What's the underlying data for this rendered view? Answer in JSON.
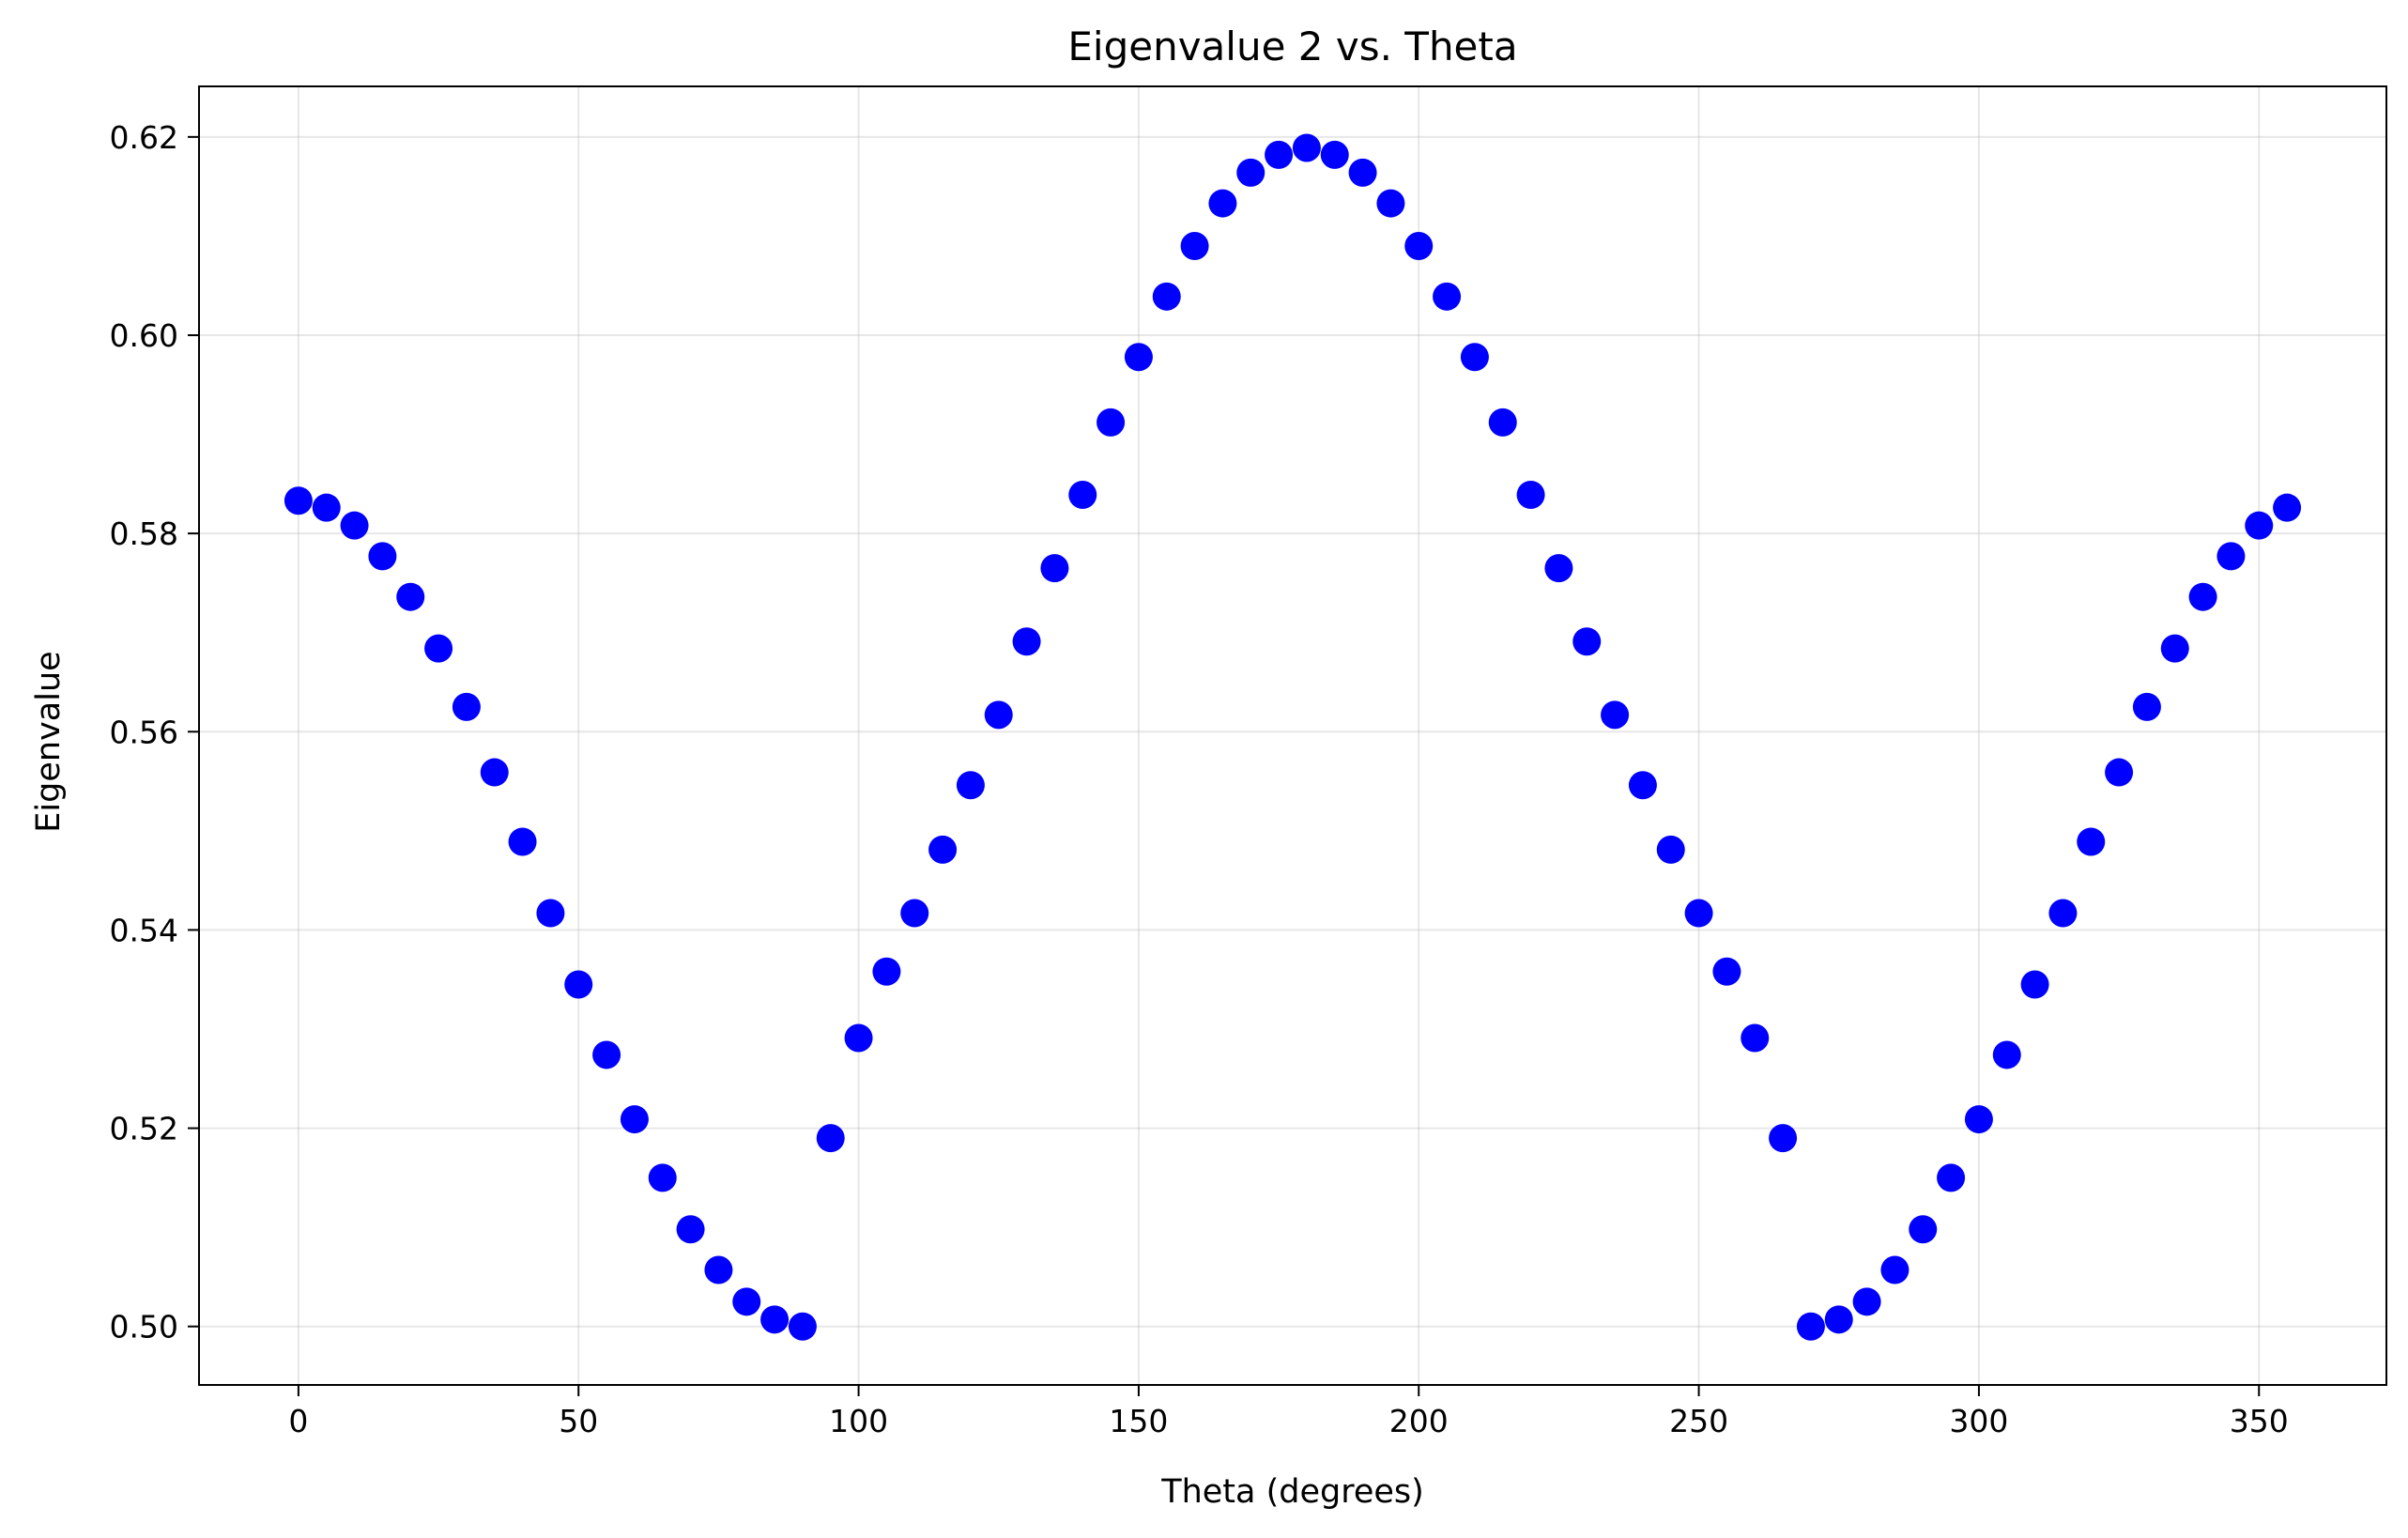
{
  "chart_data": {
    "type": "scatter",
    "title": "Eigenvalue 2 vs. Theta",
    "xlabel": "Theta (degrees)",
    "ylabel": "Eigenvalue",
    "xlim": [
      -17.75,
      372.75
    ],
    "ylim": [
      0.4941,
      0.6251
    ],
    "xticks": [
      0,
      50,
      100,
      150,
      200,
      250,
      300,
      350
    ],
    "xtick_labels": [
      "0",
      "50",
      "100",
      "150",
      "200",
      "250",
      "300",
      "350"
    ],
    "yticks": [
      0.5,
      0.52,
      0.54,
      0.56,
      0.58,
      0.6,
      0.62
    ],
    "ytick_labels": [
      "0.50",
      "0.52",
      "0.54",
      "0.56",
      "0.58",
      "0.60",
      "0.62"
    ],
    "grid": true,
    "marker_color": "#0000ff",
    "series": [
      {
        "x": [
          0,
          5,
          10,
          15,
          20,
          25,
          30,
          35,
          40,
          45,
          50,
          55,
          60,
          65,
          70,
          75,
          80,
          85,
          90,
          95,
          100,
          105,
          110,
          115,
          120,
          125,
          130,
          135,
          140,
          145,
          150,
          155,
          160,
          165,
          170,
          175,
          180,
          185,
          190,
          195,
          200,
          205,
          210,
          215,
          220,
          225,
          230,
          235,
          240,
          245,
          250,
          255,
          260,
          265,
          270,
          275,
          280,
          285,
          290,
          295,
          300,
          305,
          310,
          315,
          320,
          325,
          330,
          335,
          340,
          345,
          350,
          355
        ],
        "y": [
          0.5833,
          0.5826,
          0.5808,
          0.5777,
          0.5736,
          0.5684,
          0.5625,
          0.5559,
          0.5489,
          0.5417,
          0.5345,
          0.5274,
          0.5209,
          0.515,
          0.5098,
          0.5057,
          0.5025,
          0.5007,
          0.5,
          0.519,
          0.5291,
          0.5358,
          0.5417,
          0.5481,
          0.5546,
          0.5617,
          0.5691,
          0.5765,
          0.5839,
          0.5912,
          0.5978,
          0.6039,
          0.609,
          0.6133,
          0.6164,
          0.6182,
          0.6189,
          0.6182,
          0.6164,
          0.6133,
          0.609,
          0.6039,
          0.5978,
          0.5912,
          0.5839,
          0.5765,
          0.5691,
          0.5617,
          0.5546,
          0.5481,
          0.5417,
          0.5358,
          0.5291,
          0.519,
          0.5,
          0.5007,
          0.5025,
          0.5057,
          0.5098,
          0.515,
          0.5209,
          0.5274,
          0.5345,
          0.5417,
          0.5489,
          0.5559,
          0.5625,
          0.5684,
          0.5736,
          0.5777,
          0.5808,
          0.5826
        ]
      }
    ]
  }
}
